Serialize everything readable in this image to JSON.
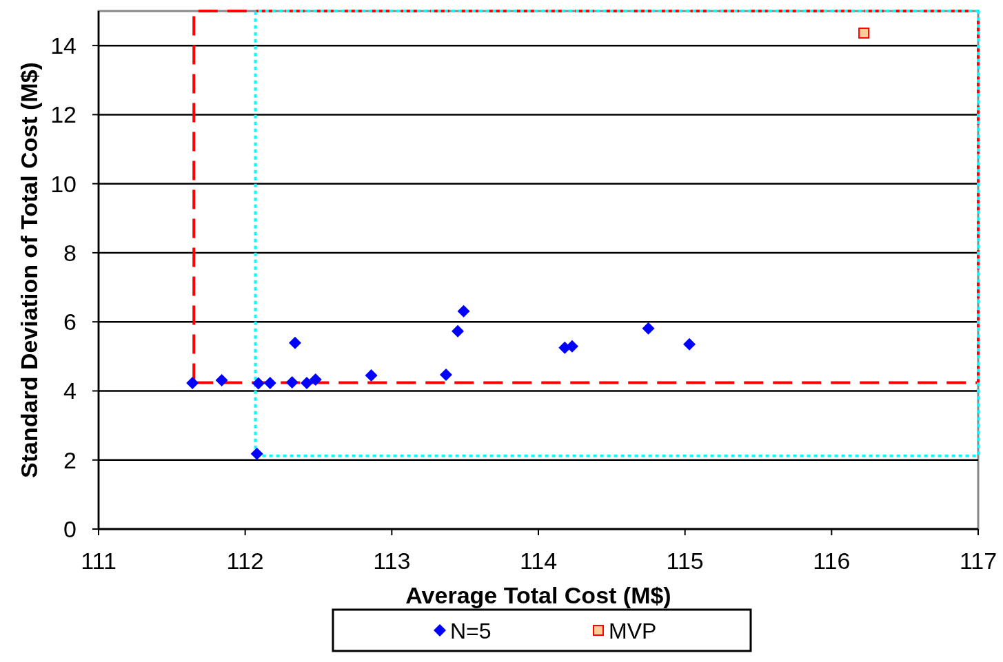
{
  "chart_data": {
    "type": "scatter",
    "xlabel": "Average Total Cost (M$)",
    "ylabel": "Standard Deviation of Total Cost (M$)",
    "xlim": [
      111,
      117
    ],
    "xticks": [
      111,
      112,
      113,
      114,
      115,
      116,
      117
    ],
    "ylim": [
      0,
      15
    ],
    "yticks": [
      0,
      2,
      4,
      6,
      8,
      10,
      12,
      14
    ],
    "grid": "y",
    "legend": "bottom",
    "series": [
      {
        "name": "N=5",
        "color": "#0000ff",
        "marker": "diamond",
        "x": [
          111.64,
          111.84,
          112.08,
          112.09,
          112.17,
          112.32,
          112.34,
          112.42,
          112.48,
          112.86,
          113.37,
          113.45,
          113.49,
          114.18,
          114.23,
          114.75,
          115.03
        ],
        "values": [
          4.23,
          4.31,
          2.18,
          4.22,
          4.23,
          4.25,
          5.39,
          4.23,
          4.33,
          4.45,
          4.47,
          5.73,
          6.31,
          5.25,
          5.29,
          5.81,
          5.35
        ]
      },
      {
        "name": "MVP",
        "color": "#ff0000",
        "marker": "square",
        "x": [
          116.22
        ],
        "values": [
          14.36
        ]
      }
    ],
    "ref_lines": [
      {
        "axis": "x",
        "value": 111.65,
        "color": "#ff0000",
        "line_style": "dashed"
      },
      {
        "axis": "y",
        "value": 4.24,
        "color": "#ff0000",
        "line_style": "dashed"
      },
      {
        "axis": "x",
        "value": 112.07,
        "color": "#00ffff",
        "line_style": "dotted"
      },
      {
        "axis": "y",
        "value": 2.12,
        "color": "#00ffff",
        "line_style": "dotted"
      }
    ]
  }
}
